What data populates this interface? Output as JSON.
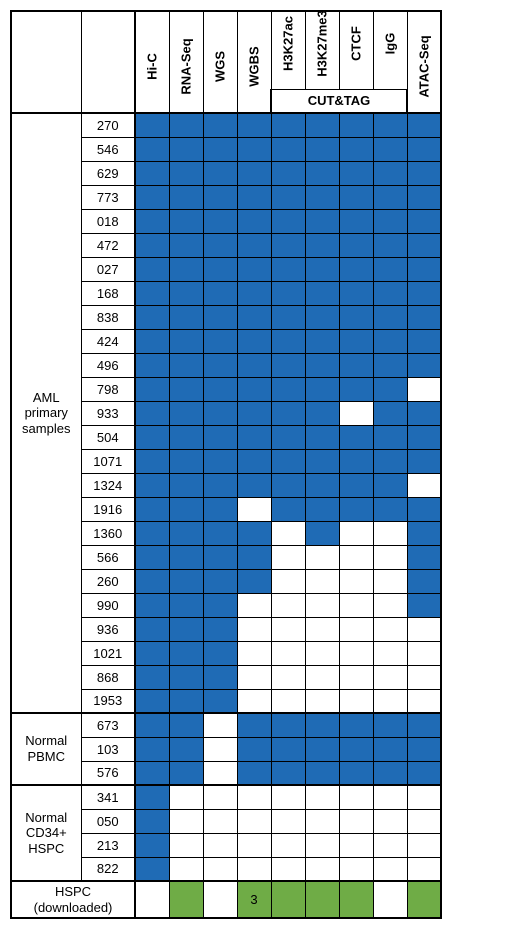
{
  "colors": {
    "fill_blue": "#1f6bb5",
    "fill_green": "#6fac46",
    "border": "#000000",
    "background": "#ffffff"
  },
  "columns": [
    "Hi-C",
    "RNA-Seq",
    "WGS",
    "WGBS",
    "H3K27ac",
    "H3K27me3",
    "CTCF",
    "IgG",
    "ATAC-Seq"
  ],
  "cut_tag_label": "CUT&TAG",
  "cut_tag_span_cols": [
    4,
    5,
    6,
    7
  ],
  "groups": [
    {
      "label": "AML primary samples",
      "rows": [
        {
          "id": "270",
          "cells": [
            1,
            1,
            1,
            1,
            1,
            1,
            1,
            1,
            1
          ]
        },
        {
          "id": "546",
          "cells": [
            1,
            1,
            1,
            1,
            1,
            1,
            1,
            1,
            1
          ]
        },
        {
          "id": "629",
          "cells": [
            1,
            1,
            1,
            1,
            1,
            1,
            1,
            1,
            1
          ]
        },
        {
          "id": "773",
          "cells": [
            1,
            1,
            1,
            1,
            1,
            1,
            1,
            1,
            1
          ]
        },
        {
          "id": "018",
          "cells": [
            1,
            1,
            1,
            1,
            1,
            1,
            1,
            1,
            1
          ]
        },
        {
          "id": "472",
          "cells": [
            1,
            1,
            1,
            1,
            1,
            1,
            1,
            1,
            1
          ]
        },
        {
          "id": "027",
          "cells": [
            1,
            1,
            1,
            1,
            1,
            1,
            1,
            1,
            1
          ]
        },
        {
          "id": "168",
          "cells": [
            1,
            1,
            1,
            1,
            1,
            1,
            1,
            1,
            1
          ]
        },
        {
          "id": "838",
          "cells": [
            1,
            1,
            1,
            1,
            1,
            1,
            1,
            1,
            1
          ]
        },
        {
          "id": "424",
          "cells": [
            1,
            1,
            1,
            1,
            1,
            1,
            1,
            1,
            1
          ]
        },
        {
          "id": "496",
          "cells": [
            1,
            1,
            1,
            1,
            1,
            1,
            1,
            1,
            1
          ]
        },
        {
          "id": "798",
          "cells": [
            1,
            1,
            1,
            1,
            1,
            1,
            1,
            1,
            0
          ]
        },
        {
          "id": "933",
          "cells": [
            1,
            1,
            1,
            1,
            1,
            1,
            0,
            1,
            1
          ]
        },
        {
          "id": "504",
          "cells": [
            1,
            1,
            1,
            1,
            1,
            1,
            1,
            1,
            1
          ]
        },
        {
          "id": "1071",
          "cells": [
            1,
            1,
            1,
            1,
            1,
            1,
            1,
            1,
            1
          ]
        },
        {
          "id": "1324",
          "cells": [
            1,
            1,
            1,
            1,
            1,
            1,
            1,
            1,
            0
          ]
        },
        {
          "id": "1916",
          "cells": [
            1,
            1,
            1,
            0,
            1,
            1,
            1,
            1,
            1
          ]
        },
        {
          "id": "1360",
          "cells": [
            1,
            1,
            1,
            1,
            0,
            1,
            0,
            0,
            1
          ]
        },
        {
          "id": "566",
          "cells": [
            1,
            1,
            1,
            1,
            0,
            0,
            0,
            0,
            1
          ]
        },
        {
          "id": "260",
          "cells": [
            1,
            1,
            1,
            1,
            0,
            0,
            0,
            0,
            1
          ]
        },
        {
          "id": "990",
          "cells": [
            1,
            1,
            1,
            0,
            0,
            0,
            0,
            0,
            1
          ]
        },
        {
          "id": "936",
          "cells": [
            1,
            1,
            1,
            0,
            0,
            0,
            0,
            0,
            0
          ]
        },
        {
          "id": "1021",
          "cells": [
            1,
            1,
            1,
            0,
            0,
            0,
            0,
            0,
            0
          ]
        },
        {
          "id": "868",
          "cells": [
            1,
            1,
            1,
            0,
            0,
            0,
            0,
            0,
            0
          ]
        },
        {
          "id": "1953",
          "cells": [
            1,
            1,
            1,
            0,
            0,
            0,
            0,
            0,
            0
          ]
        }
      ]
    },
    {
      "label": "Normal PBMC",
      "rows": [
        {
          "id": "673",
          "cells": [
            1,
            1,
            0,
            1,
            1,
            1,
            1,
            1,
            1
          ]
        },
        {
          "id": "103",
          "cells": [
            1,
            1,
            0,
            1,
            1,
            1,
            1,
            1,
            1
          ]
        },
        {
          "id": "576",
          "cells": [
            1,
            1,
            0,
            1,
            1,
            1,
            1,
            1,
            1
          ]
        }
      ]
    },
    {
      "label": "Normal CD34+ HSPC",
      "rows": [
        {
          "id": "341",
          "cells": [
            1,
            0,
            0,
            0,
            0,
            0,
            0,
            0,
            0
          ]
        },
        {
          "id": "050",
          "cells": [
            1,
            0,
            0,
            0,
            0,
            0,
            0,
            0,
            0
          ]
        },
        {
          "id": "213",
          "cells": [
            1,
            0,
            0,
            0,
            0,
            0,
            0,
            0,
            0
          ]
        },
        {
          "id": "822",
          "cells": [
            1,
            0,
            0,
            0,
            0,
            0,
            0,
            0,
            0
          ]
        }
      ]
    }
  ],
  "footer": {
    "label": "HSPC (downloaded)",
    "cells": [
      0,
      2,
      0,
      3,
      2,
      2,
      2,
      0,
      2
    ],
    "wgbs_text": "3"
  },
  "legend": {
    "0": "empty",
    "1": "blue",
    "2": "green",
    "3": "green_with_text"
  }
}
